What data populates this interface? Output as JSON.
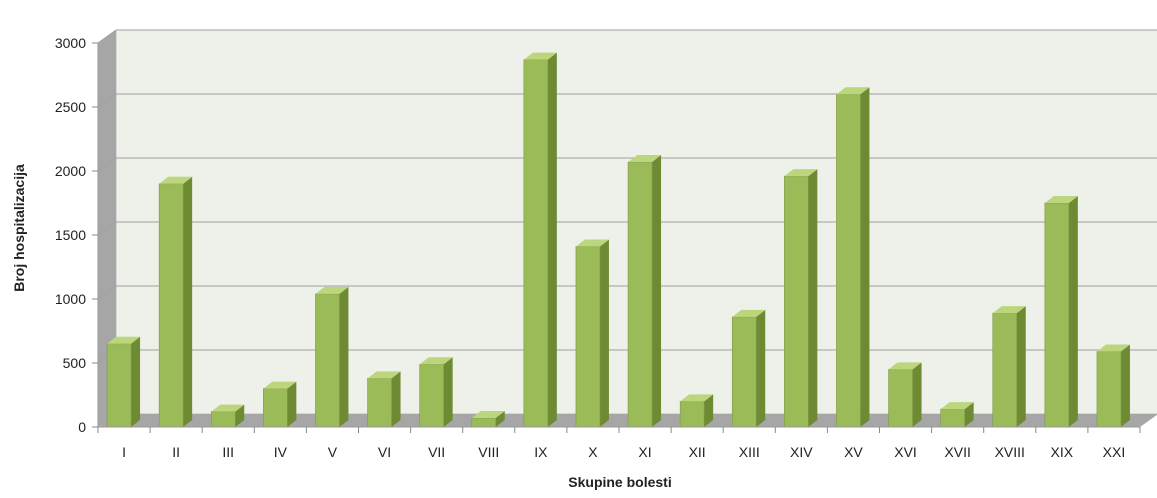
{
  "chart_data": {
    "type": "bar",
    "title": "",
    "xlabel": "Skupine bolesti",
    "ylabel": "Broj hospitalizacija",
    "ylim": [
      0,
      3000
    ],
    "yticks": [
      0,
      500,
      1000,
      1500,
      2000,
      2500,
      3000
    ],
    "grid": true,
    "categories": [
      "I",
      "II",
      "III",
      "IV",
      "V",
      "VI",
      "VII",
      "VIII",
      "IX",
      "X",
      "XI",
      "XII",
      "XIII",
      "XIV",
      "XV",
      "XVI",
      "XVII",
      "XVIII",
      "XIX",
      "XXI"
    ],
    "values": [
      650,
      1900,
      120,
      300,
      1040,
      380,
      490,
      70,
      2870,
      1410,
      2070,
      200,
      860,
      1960,
      2600,
      450,
      140,
      890,
      1750,
      590
    ],
    "colors": {
      "bar_front": "#9bbb59",
      "bar_side": "#6e8b34",
      "bar_top": "#bcd67e",
      "back_wall": "#eef1e9",
      "side_wall": "#a6a6a6",
      "floor": "#a6a6a6",
      "grid": "#a0a0a0"
    }
  }
}
